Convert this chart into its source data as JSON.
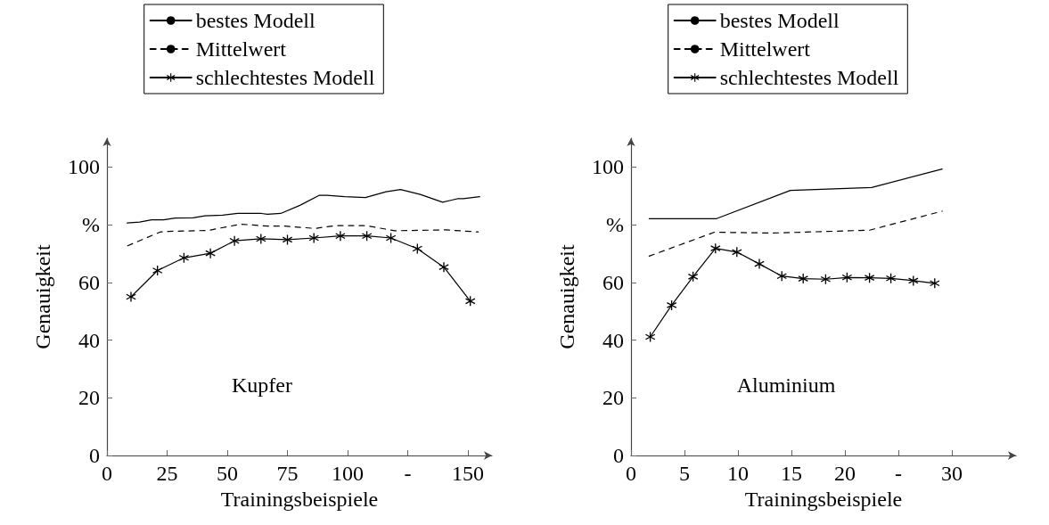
{
  "chart_data": [
    {
      "type": "line",
      "xlabel": "Trainingsbeispiele",
      "ylabel": "Genauigkeit",
      "annotations": [
        "Kupfer"
      ],
      "legend": "top",
      "grid": false,
      "xlim": [
        0,
        160
      ],
      "xticks": [
        0,
        25,
        50,
        75,
        100,
        {
          "value": 125,
          "label": "-"
        },
        150
      ],
      "ylim": [
        0,
        110
      ],
      "yticks": [
        0,
        20,
        40,
        60,
        {
          "value": 80,
          "label": "%"
        },
        100
      ],
      "series": [
        {
          "name": "bestes Modell",
          "color": "#000000",
          "line_style": "solid",
          "marker": "none",
          "x": [
            8.4,
            13.6,
            18.5,
            23.5,
            28.4,
            35.8,
            40.7,
            48.1,
            54.3,
            64.2,
            66.7,
            72.2,
            80.2,
            88.3,
            91.4,
            98.8,
            107.4,
            116,
            122,
            130.2,
            139.5,
            145.7,
            148.1,
            154.9
          ],
          "values": [
            80.6,
            80.9,
            81.7,
            81.7,
            82.3,
            82.4,
            83.1,
            83.3,
            83.9,
            83.9,
            83.6,
            83.9,
            86.7,
            90.2,
            90.2,
            89.7,
            89.4,
            91.4,
            92.2,
            90.5,
            87.8,
            89.0,
            89.0,
            89.7
          ]
        },
        {
          "name": "Mittelwert",
          "color": "#000000",
          "line_style": "dashed",
          "marker": "none",
          "x": [
            8.6,
            22.2,
            25.9,
            42,
            55.6,
            66.7,
            74,
            86.4,
            95,
            107.4,
            119.7,
            140.7,
            154.3
          ],
          "values": [
            72.7,
            77.5,
            77.7,
            78.0,
            80.2,
            79.5,
            79.5,
            78.7,
            79.7,
            79.7,
            77.9,
            78.2,
            77.5
          ]
        },
        {
          "name": "schlechtestes Modell",
          "color": "#000000",
          "line_style": "solid",
          "marker": "star",
          "x": [
            10,
            21,
            32,
            43,
            53,
            64,
            75,
            86,
            97,
            108,
            118,
            129,
            140,
            151
          ],
          "values": [
            55.0,
            64.1,
            68.5,
            70.1,
            74.4,
            75.1,
            74.8,
            75.4,
            76.1,
            76.1,
            75.4,
            71.7,
            65.3,
            53.5
          ]
        }
      ]
    },
    {
      "type": "line",
      "xlabel": "Trainingsbeispiele",
      "ylabel": "Genauigkeit",
      "annotations": [
        "Aluminium"
      ],
      "legend": "top",
      "grid": false,
      "xlim": [
        0,
        36
      ],
      "xticks": [
        0,
        5,
        10,
        15,
        20,
        {
          "value": 25,
          "label": "-"
        },
        30
      ],
      "ylim": [
        0,
        110
      ],
      "yticks": [
        0,
        20,
        40,
        60,
        {
          "value": 80,
          "label": "%"
        },
        100
      ],
      "series": [
        {
          "name": "bestes Modell",
          "color": "#000000",
          "line_style": "solid",
          "marker": "none",
          "x": [
            1.7,
            8.0,
            14.9,
            22.5,
            29.1
          ],
          "values": [
            82.1,
            82.1,
            91.9,
            92.9,
            99.3
          ]
        },
        {
          "name": "Mittelwert",
          "color": "#000000",
          "line_style": "dashed",
          "marker": "none",
          "x": [
            1.7,
            7.8,
            13.2,
            22.3,
            29.1
          ],
          "values": [
            69.1,
            77.4,
            77.1,
            78.1,
            84.7
          ]
        },
        {
          "name": "schlechtestes Modell",
          "color": "#000000",
          "line_style": "solid",
          "marker": "star",
          "x": [
            1.8,
            3.8,
            5.8,
            7.9,
            9.9,
            12.0,
            14.1,
            16.1,
            18.2,
            20.2,
            22.3,
            24.3,
            26.4,
            28.4
          ],
          "values": [
            41.1,
            52.1,
            62.0,
            71.8,
            70.5,
            66.4,
            62.2,
            61.3,
            61.1,
            61.7,
            61.6,
            61.4,
            60.6,
            59.7
          ]
        }
      ]
    }
  ]
}
